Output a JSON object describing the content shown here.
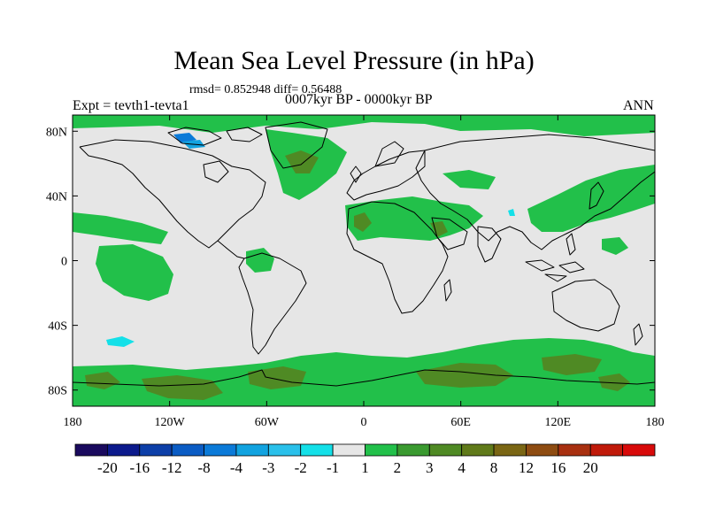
{
  "title": "Mean Sea Level Pressure (in hPa)",
  "stats_line": "rmsd= 0.852948 diff= 0.56488",
  "period_line": "0007kyr BP - 0000kyr BP",
  "experiment": "Expt = tevth1-tevta1",
  "season": "ANN",
  "map": {
    "projection": "cylindrical-equidistant",
    "lon_range": [
      -180,
      180
    ],
    "lat_range": [
      -90,
      90
    ],
    "x_ticks": [
      {
        "lon": -180,
        "label": "180"
      },
      {
        "lon": -120,
        "label": "120W"
      },
      {
        "lon": -60,
        "label": "60W"
      },
      {
        "lon": 0,
        "label": "0"
      },
      {
        "lon": 60,
        "label": "60E"
      },
      {
        "lon": 120,
        "label": "120E"
      },
      {
        "lon": 180,
        "label": "180"
      }
    ],
    "y_ticks": [
      {
        "lat": 80,
        "label": "80N"
      },
      {
        "lat": 40,
        "label": "40N"
      },
      {
        "lat": 0,
        "label": "0"
      },
      {
        "lat": -40,
        "label": "40S"
      },
      {
        "lat": -80,
        "label": "80S"
      }
    ],
    "background_color": "#e6e6e6",
    "coastline_color": "#000000"
  },
  "colorbar": {
    "colors": [
      "#1a0a5e",
      "#0c1a8c",
      "#0d3fa8",
      "#0b5cc4",
      "#0b7ad8",
      "#12a3e0",
      "#2ac0ea",
      "#14e0e8",
      "#e6e6e6",
      "#22c04a",
      "#3a9a30",
      "#4f8a24",
      "#607a1a",
      "#7a6614",
      "#8e4c12",
      "#a83010",
      "#c01a0a",
      "#d80a0a"
    ],
    "labels": [
      "-20",
      "-16",
      "-12",
      "-8",
      "-4",
      "-3",
      "-2",
      "-1",
      "1",
      "2",
      "3",
      "4",
      "8",
      "12",
      "16",
      "20"
    ]
  },
  "legend_colors": {
    "band_1_2": "#22c04a",
    "band_3_4": "#4f8a24",
    "band_4_8": "#607a1a",
    "band_m2_m1": "#14e0e8",
    "band_m4_m3": "#0b7ad8"
  }
}
